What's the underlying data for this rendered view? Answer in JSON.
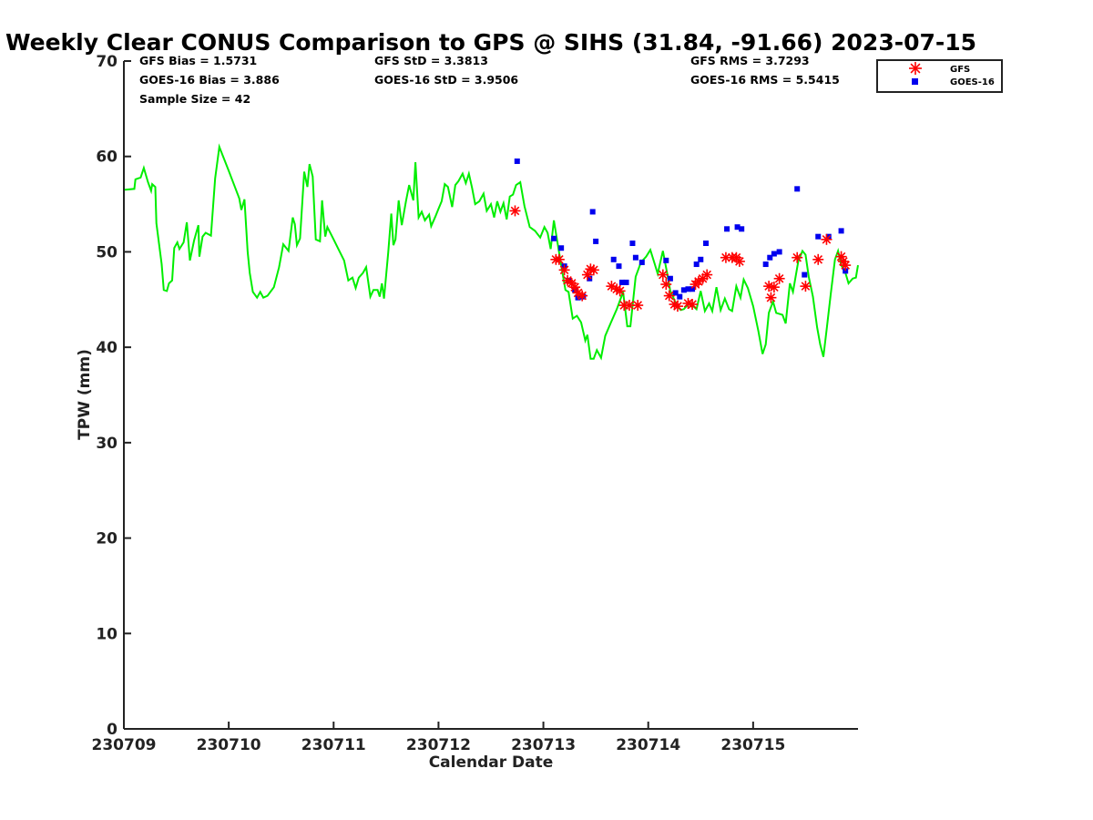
{
  "chart_data": {
    "type": "line",
    "title": "Weekly Clear CONUS Comparison to GPS @ SIHS (31.84, -91.66) 2023-07-15",
    "xlabel": "Calendar Date",
    "ylabel": "TPW (mm)",
    "x_range_days": [
      0,
      7
    ],
    "ylim": [
      0,
      70
    ],
    "x_ticks": [
      {
        "day": 0,
        "label": "230709"
      },
      {
        "day": 1,
        "label": "230710"
      },
      {
        "day": 2,
        "label": "230711"
      },
      {
        "day": 3,
        "label": "230712"
      },
      {
        "day": 4,
        "label": "230713"
      },
      {
        "day": 5,
        "label": "230714"
      },
      {
        "day": 6,
        "label": "230715"
      }
    ],
    "y_ticks": [
      0,
      10,
      20,
      30,
      40,
      50,
      60,
      70
    ],
    "grid": false,
    "legend_position": "top-right",
    "stats": {
      "gfs_bias": "GFS Bias = 1.5731",
      "goes_bias": "GOES-16 Bias = 3.886",
      "sample_size": "Sample Size = 42",
      "gfs_std": "GFS StD = 3.3813",
      "goes_std": "GOES-16 StD = 3.9506",
      "gfs_rms": "GFS RMS = 3.7293",
      "goes_rms": "GOES-16 RMS = 5.5415"
    },
    "series": [
      {
        "kind": "line",
        "color": "#00ee00",
        "points": [
          [
            0.0,
            56.5
          ],
          [
            0.1,
            56.6
          ],
          [
            0.11,
            57.6
          ],
          [
            0.16,
            57.8
          ],
          [
            0.19,
            58.8
          ],
          [
            0.23,
            57.3
          ],
          [
            0.26,
            56.4
          ],
          [
            0.27,
            57.1
          ],
          [
            0.3,
            56.8
          ],
          [
            0.31,
            53.0
          ],
          [
            0.36,
            48.7
          ],
          [
            0.38,
            46.0
          ],
          [
            0.41,
            45.9
          ],
          [
            0.43,
            46.7
          ],
          [
            0.46,
            47.0
          ],
          [
            0.48,
            50.4
          ],
          [
            0.51,
            51.0
          ],
          [
            0.53,
            50.3
          ],
          [
            0.57,
            51.0
          ],
          [
            0.6,
            53.1
          ],
          [
            0.63,
            49.1
          ],
          [
            0.67,
            51.2
          ],
          [
            0.71,
            52.8
          ],
          [
            0.72,
            49.5
          ],
          [
            0.75,
            51.6
          ],
          [
            0.78,
            52.0
          ],
          [
            0.83,
            51.7
          ],
          [
            0.87,
            57.7
          ],
          [
            0.91,
            61.0
          ],
          [
            1.0,
            58.5
          ],
          [
            1.1,
            55.6
          ],
          [
            1.12,
            54.4
          ],
          [
            1.15,
            55.5
          ],
          [
            1.18,
            50.0
          ],
          [
            1.2,
            47.8
          ],
          [
            1.23,
            45.8
          ],
          [
            1.27,
            45.2
          ],
          [
            1.3,
            45.8
          ],
          [
            1.33,
            45.2
          ],
          [
            1.37,
            45.4
          ],
          [
            1.43,
            46.3
          ],
          [
            1.48,
            48.4
          ],
          [
            1.52,
            50.8
          ],
          [
            1.57,
            50.1
          ],
          [
            1.61,
            53.6
          ],
          [
            1.63,
            52.9
          ],
          [
            1.65,
            50.7
          ],
          [
            1.68,
            51.4
          ],
          [
            1.72,
            58.4
          ],
          [
            1.75,
            56.8
          ],
          [
            1.77,
            59.2
          ],
          [
            1.8,
            57.9
          ],
          [
            1.83,
            51.3
          ],
          [
            1.87,
            51.1
          ],
          [
            1.89,
            55.4
          ],
          [
            1.92,
            51.6
          ],
          [
            1.94,
            52.6
          ],
          [
            2.0,
            51.3
          ],
          [
            2.05,
            50.2
          ],
          [
            2.1,
            49.1
          ],
          [
            2.14,
            47.0
          ],
          [
            2.18,
            47.3
          ],
          [
            2.21,
            46.2
          ],
          [
            2.24,
            47.3
          ],
          [
            2.28,
            47.8
          ],
          [
            2.31,
            48.4
          ],
          [
            2.35,
            45.3
          ],
          [
            2.38,
            46.0
          ],
          [
            2.42,
            46.0
          ],
          [
            2.44,
            45.3
          ],
          [
            2.46,
            46.7
          ],
          [
            2.48,
            45.1
          ],
          [
            2.52,
            49.9
          ],
          [
            2.55,
            54.0
          ],
          [
            2.57,
            50.7
          ],
          [
            2.59,
            51.3
          ],
          [
            2.62,
            55.4
          ],
          [
            2.65,
            52.8
          ],
          [
            2.69,
            55.3
          ],
          [
            2.72,
            57.0
          ],
          [
            2.76,
            55.4
          ],
          [
            2.78,
            59.4
          ],
          [
            2.81,
            53.6
          ],
          [
            2.84,
            54.2
          ],
          [
            2.87,
            53.3
          ],
          [
            2.91,
            53.9
          ],
          [
            2.93,
            52.7
          ],
          [
            2.97,
            53.7
          ],
          [
            3.0,
            54.5
          ],
          [
            3.03,
            55.3
          ],
          [
            3.06,
            57.1
          ],
          [
            3.09,
            56.8
          ],
          [
            3.13,
            54.7
          ],
          [
            3.16,
            57.0
          ],
          [
            3.19,
            57.4
          ],
          [
            3.23,
            58.2
          ],
          [
            3.26,
            57.2
          ],
          [
            3.29,
            58.2
          ],
          [
            3.32,
            56.7
          ],
          [
            3.35,
            55.0
          ],
          [
            3.39,
            55.3
          ],
          [
            3.43,
            56.1
          ],
          [
            3.46,
            54.3
          ],
          [
            3.5,
            55.0
          ],
          [
            3.53,
            53.6
          ],
          [
            3.56,
            55.3
          ],
          [
            3.59,
            54.2
          ],
          [
            3.62,
            55.1
          ],
          [
            3.65,
            53.4
          ],
          [
            3.68,
            55.8
          ],
          [
            3.71,
            56.0
          ],
          [
            3.74,
            57.0
          ],
          [
            3.78,
            57.3
          ],
          [
            3.82,
            54.8
          ],
          [
            3.87,
            52.6
          ],
          [
            3.92,
            52.2
          ],
          [
            3.97,
            51.5
          ],
          [
            4.01,
            52.6
          ],
          [
            4.04,
            52.0
          ],
          [
            4.07,
            50.3
          ],
          [
            4.1,
            53.3
          ],
          [
            4.14,
            50.6
          ],
          [
            4.17,
            48.6
          ],
          [
            4.21,
            46.0
          ],
          [
            4.24,
            45.8
          ],
          [
            4.28,
            43.0
          ],
          [
            4.32,
            43.3
          ],
          [
            4.36,
            42.6
          ],
          [
            4.4,
            40.7
          ],
          [
            4.42,
            41.3
          ],
          [
            4.45,
            38.8
          ],
          [
            4.48,
            38.8
          ],
          [
            4.51,
            39.7
          ],
          [
            4.55,
            38.9
          ],
          [
            4.59,
            41.2
          ],
          [
            4.64,
            42.5
          ],
          [
            4.7,
            44.0
          ],
          [
            4.76,
            45.8
          ],
          [
            4.8,
            42.2
          ],
          [
            4.83,
            42.2
          ],
          [
            4.88,
            47.4
          ],
          [
            4.93,
            48.9
          ],
          [
            4.98,
            49.5
          ],
          [
            5.02,
            50.2
          ],
          [
            5.06,
            48.8
          ],
          [
            5.09,
            47.7
          ],
          [
            5.14,
            50.1
          ],
          [
            5.18,
            47.8
          ],
          [
            5.21,
            45.9
          ],
          [
            5.24,
            45.2
          ],
          [
            5.27,
            44.4
          ],
          [
            5.31,
            43.9
          ],
          [
            5.34,
            44.0
          ],
          [
            5.38,
            44.5
          ],
          [
            5.42,
            44.4
          ],
          [
            5.46,
            44.0
          ],
          [
            5.5,
            45.9
          ],
          [
            5.54,
            43.8
          ],
          [
            5.58,
            44.6
          ],
          [
            5.61,
            43.8
          ],
          [
            5.65,
            46.3
          ],
          [
            5.69,
            43.9
          ],
          [
            5.73,
            45.1
          ],
          [
            5.77,
            44.0
          ],
          [
            5.8,
            43.8
          ],
          [
            5.84,
            46.4
          ],
          [
            5.88,
            45.2
          ],
          [
            5.91,
            47.1
          ],
          [
            5.95,
            46.2
          ],
          [
            6.0,
            44.3
          ],
          [
            6.05,
            41.7
          ],
          [
            6.09,
            39.3
          ],
          [
            6.12,
            40.3
          ],
          [
            6.15,
            43.6
          ],
          [
            6.19,
            44.8
          ],
          [
            6.22,
            43.6
          ],
          [
            6.28,
            43.4
          ],
          [
            6.31,
            42.5
          ],
          [
            6.35,
            46.7
          ],
          [
            6.38,
            45.8
          ],
          [
            6.43,
            49.0
          ],
          [
            6.47,
            50.1
          ],
          [
            6.5,
            49.7
          ],
          [
            6.53,
            47.4
          ],
          [
            6.57,
            45.3
          ],
          [
            6.61,
            42.1
          ],
          [
            6.64,
            40.3
          ],
          [
            6.67,
            39.0
          ],
          [
            6.7,
            41.8
          ],
          [
            6.74,
            45.6
          ],
          [
            6.78,
            49.2
          ],
          [
            6.81,
            50.1
          ],
          [
            6.84,
            48.6
          ],
          [
            6.88,
            47.8
          ],
          [
            6.91,
            46.7
          ],
          [
            6.95,
            47.2
          ],
          [
            6.98,
            47.3
          ],
          [
            7.0,
            48.6
          ]
        ]
      },
      {
        "name": "GFS",
        "kind": "star",
        "color": "#ff0000",
        "points": [
          [
            3.73,
            54.3
          ],
          [
            4.12,
            49.2
          ],
          [
            4.15,
            49.2
          ],
          [
            4.2,
            48.1
          ],
          [
            4.23,
            47.0
          ],
          [
            4.27,
            46.7
          ],
          [
            4.3,
            46.3
          ],
          [
            4.33,
            45.7
          ],
          [
            4.37,
            45.4
          ],
          [
            4.42,
            47.6
          ],
          [
            4.45,
            48.2
          ],
          [
            4.48,
            48.1
          ],
          [
            4.65,
            46.4
          ],
          [
            4.7,
            46.1
          ],
          [
            4.73,
            45.9
          ],
          [
            4.77,
            44.4
          ],
          [
            4.82,
            44.4
          ],
          [
            4.9,
            44.4
          ],
          [
            5.14,
            47.6
          ],
          [
            5.17,
            46.6
          ],
          [
            5.2,
            45.4
          ],
          [
            5.25,
            44.5
          ],
          [
            5.28,
            44.3
          ],
          [
            5.38,
            44.6
          ],
          [
            5.42,
            44.5
          ],
          [
            5.45,
            46.6
          ],
          [
            5.48,
            46.9
          ],
          [
            5.52,
            47.2
          ],
          [
            5.56,
            47.6
          ],
          [
            5.74,
            49.4
          ],
          [
            5.8,
            49.4
          ],
          [
            5.84,
            49.4
          ],
          [
            5.87,
            49.0
          ],
          [
            6.15,
            46.4
          ],
          [
            6.17,
            45.2
          ],
          [
            6.2,
            46.3
          ],
          [
            6.25,
            47.2
          ],
          [
            6.42,
            49.4
          ],
          [
            6.5,
            46.4
          ],
          [
            6.62,
            49.2
          ],
          [
            6.7,
            51.3
          ],
          [
            6.84,
            49.5
          ],
          [
            6.86,
            49.0
          ],
          [
            6.88,
            48.6
          ]
        ]
      },
      {
        "name": "GOES-16",
        "kind": "square",
        "color": "#0000ee",
        "points": [
          [
            3.75,
            59.5
          ],
          [
            4.1,
            51.4
          ],
          [
            4.17,
            50.4
          ],
          [
            4.2,
            48.5
          ],
          [
            4.24,
            47.0
          ],
          [
            4.3,
            46.0
          ],
          [
            4.33,
            45.2
          ],
          [
            4.38,
            45.3
          ],
          [
            4.44,
            47.2
          ],
          [
            4.47,
            54.2
          ],
          [
            4.5,
            51.1
          ],
          [
            4.67,
            49.2
          ],
          [
            4.72,
            48.5
          ],
          [
            4.75,
            46.8
          ],
          [
            4.79,
            46.8
          ],
          [
            4.85,
            50.9
          ],
          [
            4.88,
            49.4
          ],
          [
            4.94,
            48.9
          ],
          [
            5.17,
            49.1
          ],
          [
            5.21,
            47.2
          ],
          [
            5.26,
            45.7
          ],
          [
            5.3,
            45.3
          ],
          [
            5.34,
            46.0
          ],
          [
            5.38,
            46.1
          ],
          [
            5.42,
            46.1
          ],
          [
            5.46,
            48.7
          ],
          [
            5.5,
            49.2
          ],
          [
            5.55,
            50.9
          ],
          [
            5.75,
            52.4
          ],
          [
            5.85,
            52.6
          ],
          [
            5.89,
            52.4
          ],
          [
            6.12,
            48.7
          ],
          [
            6.16,
            49.4
          ],
          [
            6.2,
            49.8
          ],
          [
            6.25,
            50.0
          ],
          [
            6.42,
            56.6
          ],
          [
            6.49,
            47.6
          ],
          [
            6.62,
            51.6
          ],
          [
            6.72,
            51.6
          ],
          [
            6.84,
            52.2
          ],
          [
            6.88,
            48.0
          ]
        ]
      }
    ]
  }
}
